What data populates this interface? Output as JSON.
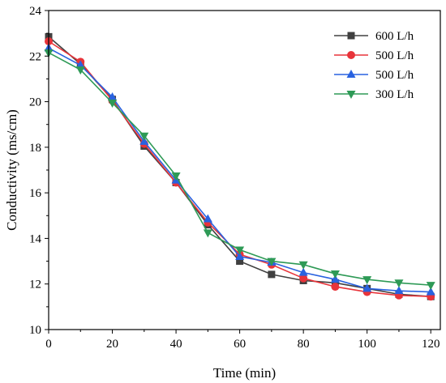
{
  "chart_data": {
    "type": "line",
    "xlabel": "Time (min)",
    "ylabel": "Conductivity (ms/cm)",
    "xlim": [
      0,
      123
    ],
    "ylim": [
      10,
      24
    ],
    "x_ticks": [
      0,
      20,
      40,
      60,
      80,
      100,
      120
    ],
    "y_ticks": [
      10,
      12,
      14,
      16,
      18,
      20,
      22,
      24
    ],
    "grid": false,
    "legend_position": "top-right",
    "x": [
      0,
      10,
      20,
      30,
      40,
      50,
      60,
      70,
      80,
      90,
      100,
      110,
      120
    ],
    "series": [
      {
        "name": "600 L/h",
        "color": "#404040",
        "marker": "square",
        "values": [
          22.85,
          21.65,
          20.1,
          18.05,
          16.45,
          14.6,
          13.0,
          12.42,
          12.15,
          12.05,
          11.8,
          11.55,
          11.45
        ]
      },
      {
        "name": "500 L/h",
        "color": "#e8343a",
        "marker": "circle",
        "values": [
          22.65,
          21.75,
          20.05,
          18.15,
          16.45,
          14.7,
          13.3,
          12.85,
          12.25,
          11.88,
          11.65,
          11.5,
          11.45
        ]
      },
      {
        "name": "500 L/h",
        "color": "#2962e0",
        "marker": "triangle-up",
        "values": [
          22.35,
          21.6,
          20.2,
          18.25,
          16.55,
          14.85,
          13.2,
          12.95,
          12.5,
          12.2,
          11.8,
          11.7,
          11.65
        ]
      },
      {
        "name": "300 L/h",
        "color": "#2e9a56",
        "marker": "triangle-down",
        "values": [
          22.15,
          21.4,
          19.95,
          18.5,
          16.75,
          14.25,
          13.5,
          13.0,
          12.85,
          12.45,
          12.2,
          12.05,
          11.95
        ]
      }
    ]
  }
}
